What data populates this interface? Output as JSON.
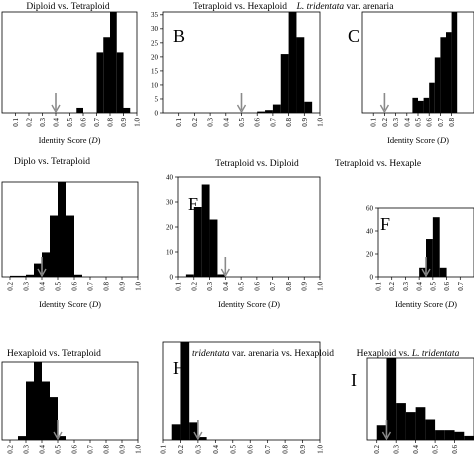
{
  "chart_data": [
    {
      "type": "histogram",
      "title": "Diploid vs. Tetraploid",
      "panel_label": "",
      "xlabel": "Identity Score (D)",
      "ylabel": "",
      "xlim": [
        0.0,
        1.0
      ],
      "x_tick_labels": [
        "0.1",
        "0.2",
        "0.3",
        "0.4",
        "0.5",
        "0.6",
        "0.7",
        "0.8",
        "0.9",
        "1.0"
      ],
      "y_tick_labels": [],
      "bin_width": 0.05,
      "bins": [
        {
          "x": 0.55,
          "height": 0.05
        },
        {
          "x": 0.7,
          "height": 0.6
        },
        {
          "x": 0.75,
          "height": 0.75
        },
        {
          "x": 0.8,
          "height": 1.0
        },
        {
          "x": 0.85,
          "height": 0.6
        },
        {
          "x": 0.9,
          "height": 0.05
        }
      ],
      "arrow_x": 0.4
    },
    {
      "type": "histogram",
      "title": "Tetraploid vs. Hexaploid",
      "panel_label": "B",
      "xlabel": "",
      "ylabel": "",
      "xlim": [
        0.0,
        1.0
      ],
      "x_tick_labels": [
        "0.1",
        "0.2",
        "0.3",
        "0.4",
        "0.5",
        "0.6",
        "0.7",
        "0.8",
        "0.9",
        "1.0"
      ],
      "y_tick_labels": [
        "0",
        "5",
        "10",
        "15",
        "20",
        "25",
        "30",
        "35"
      ],
      "ylim": [
        0,
        36
      ],
      "bin_width": 0.05,
      "bins": [
        {
          "x": 0.6,
          "height": 0.5
        },
        {
          "x": 0.65,
          "height": 1
        },
        {
          "x": 0.7,
          "height": 3
        },
        {
          "x": 0.75,
          "height": 21
        },
        {
          "x": 0.8,
          "height": 40
        },
        {
          "x": 0.85,
          "height": 27
        },
        {
          "x": 0.9,
          "height": 4
        }
      ],
      "arrow_x": 0.5
    },
    {
      "type": "histogram",
      "title_prefix": "L. tridentata",
      "title_suffix": " var. arenaria",
      "panel_label": "C",
      "xlabel": "Identity Score (D)",
      "ylabel": "",
      "xlim": [
        0.0,
        1.0
      ],
      "x_tick_labels": [
        "0.1",
        "0.2",
        "0.3",
        "0.4",
        "0.5",
        "0.6",
        "0.7",
        "0.8"
      ],
      "y_tick_labels": [],
      "bin_width": 0.05,
      "bins": [
        {
          "x": 0.45,
          "height": 0.15
        },
        {
          "x": 0.5,
          "height": 0.12
        },
        {
          "x": 0.55,
          "height": 0.15
        },
        {
          "x": 0.6,
          "height": 0.3
        },
        {
          "x": 0.65,
          "height": 0.55
        },
        {
          "x": 0.7,
          "height": 0.75
        },
        {
          "x": 0.75,
          "height": 0.8
        },
        {
          "x": 0.8,
          "height": 1.0
        }
      ],
      "arrow_x": 0.2
    },
    {
      "type": "histogram",
      "title": "Diplo vs. Tetraploid",
      "panel_label": "",
      "xlabel": "Identity Score (D)",
      "ylabel": "",
      "xlim": [
        0.15,
        1.0
      ],
      "x_tick_labels": [
        "0.2",
        "0.3",
        "0.4",
        "0.5",
        "0.6",
        "0.7",
        "0.8",
        "0.9",
        "1.0"
      ],
      "y_tick_labels": [],
      "bin_width": 0.05,
      "bins": [
        {
          "x": 0.2,
          "height": 0.01
        },
        {
          "x": 0.25,
          "height": 0.01
        },
        {
          "x": 0.3,
          "height": 0.02
        },
        {
          "x": 0.35,
          "height": 0.12
        },
        {
          "x": 0.4,
          "height": 0.22
        },
        {
          "x": 0.45,
          "height": 0.55
        },
        {
          "x": 0.5,
          "height": 0.85
        },
        {
          "x": 0.55,
          "height": 0.55
        },
        {
          "x": 0.6,
          "height": 0.02
        }
      ],
      "arrow_x": 0.4
    },
    {
      "type": "histogram",
      "title": "Tetraploid vs. Diploid",
      "panel_label": "E",
      "xlabel": "Identity Score (D)",
      "ylabel": "",
      "xlim": [
        0.1,
        1.0
      ],
      "x_tick_labels": [
        "0.1",
        "0.2",
        "0.3",
        "0.4",
        "0.5",
        "0.6",
        "0.7",
        "0.8",
        "0.9",
        "1.0"
      ],
      "y_tick_labels": [
        "0",
        "10",
        "20",
        "30",
        "40"
      ],
      "ylim": [
        0,
        40
      ],
      "bin_width": 0.05,
      "bins": [
        {
          "x": 0.15,
          "height": 1
        },
        {
          "x": 0.2,
          "height": 28
        },
        {
          "x": 0.25,
          "height": 37
        },
        {
          "x": 0.3,
          "height": 23
        },
        {
          "x": 0.35,
          "height": 1
        }
      ],
      "arrow_x": 0.4
    },
    {
      "type": "histogram",
      "title": "Tetraploid vs. Hexaple",
      "panel_label": "F",
      "xlabel": "Identity Score (D)",
      "ylabel": "",
      "xlim": [
        0.1,
        0.8
      ],
      "x_tick_labels": [
        "0.1",
        "0.2",
        "0.3",
        "0.4",
        "0.5",
        "0.6",
        "0.7"
      ],
      "y_tick_labels": [
        "0",
        "20",
        "40",
        "60"
      ],
      "ylim": [
        0,
        60
      ],
      "bin_width": 0.05,
      "bins": [
        {
          "x": 0.4,
          "height": 8
        },
        {
          "x": 0.45,
          "height": 33
        },
        {
          "x": 0.5,
          "height": 52
        },
        {
          "x": 0.55,
          "height": 8
        }
      ],
      "arrow_x": 0.45
    },
    {
      "type": "histogram",
      "title": "Hexaploid vs. Tetraploid",
      "panel_label": "",
      "xlabel": "",
      "ylabel": "",
      "xlim": [
        0.15,
        1.0
      ],
      "x_tick_labels": [
        "0.2",
        "0.3",
        "0.4",
        "0.5",
        "0.6",
        "0.7",
        "0.8",
        "0.9",
        "1.0"
      ],
      "y_tick_labels": [],
      "bin_width": 0.05,
      "bins": [
        {
          "x": 0.25,
          "height": 0.05
        },
        {
          "x": 0.3,
          "height": 0.75
        },
        {
          "x": 0.35,
          "height": 1.0
        },
        {
          "x": 0.4,
          "height": 0.75
        },
        {
          "x": 0.45,
          "height": 0.55
        },
        {
          "x": 0.5,
          "height": 0.05
        }
      ],
      "arrow_x": 0.5
    },
    {
      "type": "histogram",
      "title_prefix": "L. tridentata",
      "title_suffix": " var. arenaria vs. Hexaploid",
      "panel_label": "H",
      "xlabel": "",
      "ylabel": "",
      "xlim": [
        0.1,
        1.0
      ],
      "x_tick_labels": [
        "0.1",
        "0.2",
        "0.3",
        "0.4",
        "0.5",
        "0.6",
        "0.7",
        "0.8",
        "0.9",
        "1.0"
      ],
      "y_tick_labels": [],
      "bin_width": 0.05,
      "bins": [
        {
          "x": 0.15,
          "height": 0.16
        },
        {
          "x": 0.2,
          "height": 1.0
        },
        {
          "x": 0.25,
          "height": 0.18
        },
        {
          "x": 0.3,
          "height": 0.03
        }
      ],
      "arrow_x": 0.3
    },
    {
      "type": "histogram",
      "title_prefix": "Hexaploid vs. ",
      "title_suffix": "L. tridentata",
      "title_suffix_italic": true,
      "panel_label": "I",
      "xlabel": "",
      "ylabel": "",
      "xlim": [
        0.15,
        0.7
      ],
      "x_tick_labels": [
        "0.2",
        "0.3",
        "0.4",
        "0.5",
        "0.6"
      ],
      "y_tick_labels": [],
      "bin_width": 0.05,
      "bins": [
        {
          "x": 0.2,
          "height": 0.18
        },
        {
          "x": 0.25,
          "height": 1.0
        },
        {
          "x": 0.3,
          "height": 0.45
        },
        {
          "x": 0.35,
          "height": 0.34
        },
        {
          "x": 0.4,
          "height": 0.4
        },
        {
          "x": 0.45,
          "height": 0.25
        },
        {
          "x": 0.5,
          "height": 0.12
        },
        {
          "x": 0.55,
          "height": 0.12
        },
        {
          "x": 0.6,
          "height": 0.1
        },
        {
          "x": 0.65,
          "height": 0.05
        }
      ],
      "arrow_x": 0.25
    }
  ]
}
